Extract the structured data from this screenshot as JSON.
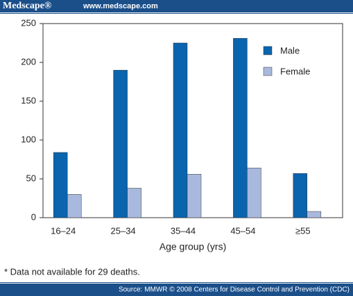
{
  "header": {
    "logo": "Medscape®",
    "url": "www.medscape.com"
  },
  "footnote": "* Data not available for 29 deaths.",
  "source": "Source: MMWR © 2008 Centers for Disease Control and Prevention (CDC)",
  "chart_data": {
    "type": "bar",
    "x_label": "Age group (yrs)",
    "categories": [
      "16–24",
      "25–34",
      "35–44",
      "45–54",
      "≥55"
    ],
    "series": [
      {
        "name": "Male",
        "color": "#0a64ae",
        "values": [
          84,
          190,
          225,
          231,
          57
        ]
      },
      {
        "name": "Female",
        "color": "#a9b9dd",
        "values": [
          30,
          38,
          56,
          64,
          8
        ]
      }
    ],
    "ylim": [
      0,
      250
    ],
    "yticks": [
      0,
      50,
      100,
      150,
      200,
      250
    ],
    "grid": false,
    "legend": "top-right"
  }
}
